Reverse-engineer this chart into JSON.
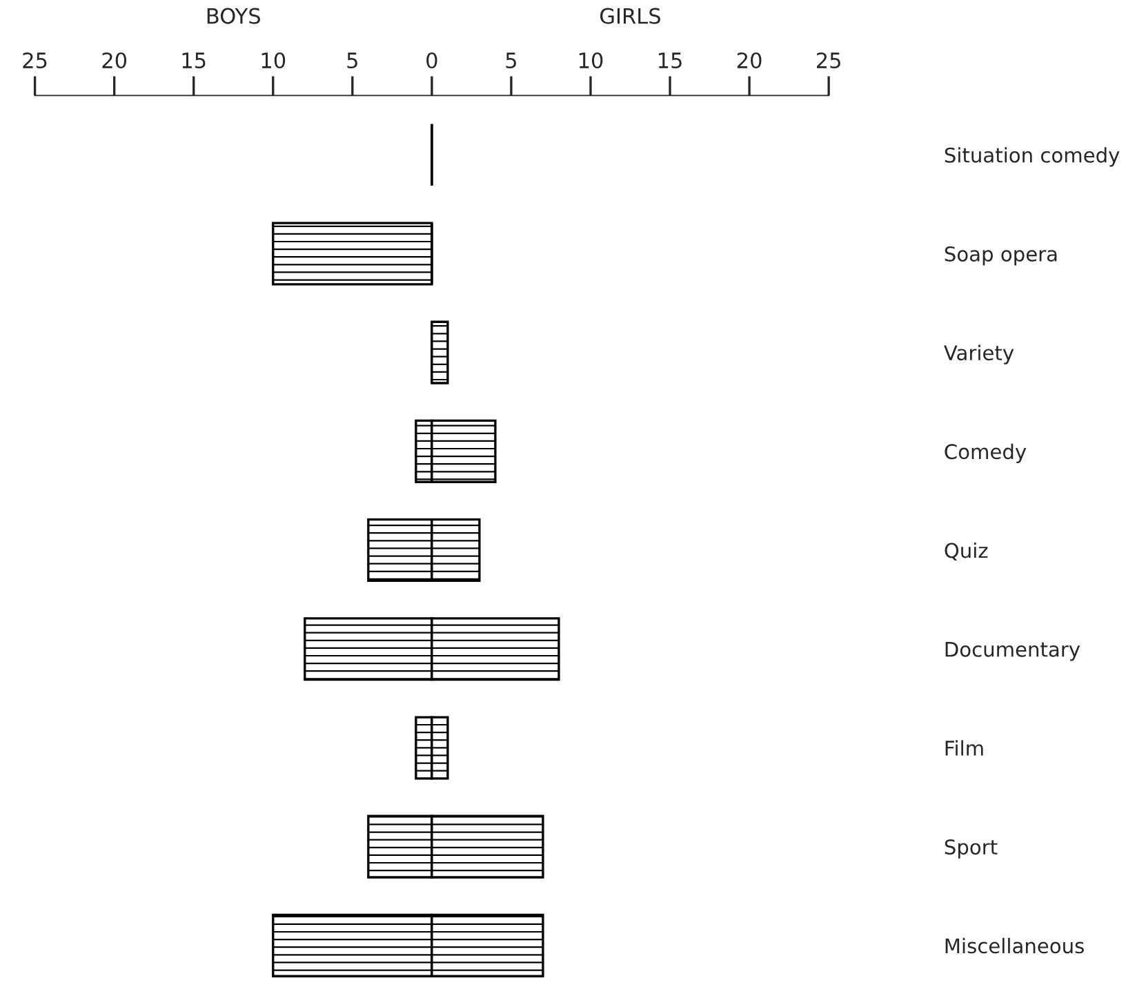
{
  "chart_data": {
    "type": "bar",
    "orientation": "horizontal",
    "stacked": true,
    "annotations": [
      "BOYS",
      "GIRLS"
    ],
    "categories": [
      "Situation comedy",
      "Soap opera",
      "Variety",
      "Comedy",
      "Quiz",
      "Documentary",
      "Film",
      "Sport",
      "Miscellaneous"
    ],
    "series": [
      {
        "color": "#000000",
        "values": [
          0,
          -10,
          0,
          -1,
          -4,
          -8,
          -1,
          -4,
          -10
        ]
      },
      {
        "color": "#000000",
        "values": [
          0,
          0,
          1,
          4,
          3,
          8,
          1,
          7,
          7
        ]
      }
    ],
    "xlim": [
      -25,
      25
    ],
    "xticks": [
      {
        "value": -25,
        "label": "25"
      },
      {
        "value": -20,
        "label": "20"
      },
      {
        "value": -15,
        "label": "15"
      },
      {
        "value": -10,
        "label": "10"
      },
      {
        "value": -5,
        "label": "5"
      },
      0,
      5,
      10,
      15,
      20,
      25
    ],
    "grid": false,
    "legend": false
  }
}
